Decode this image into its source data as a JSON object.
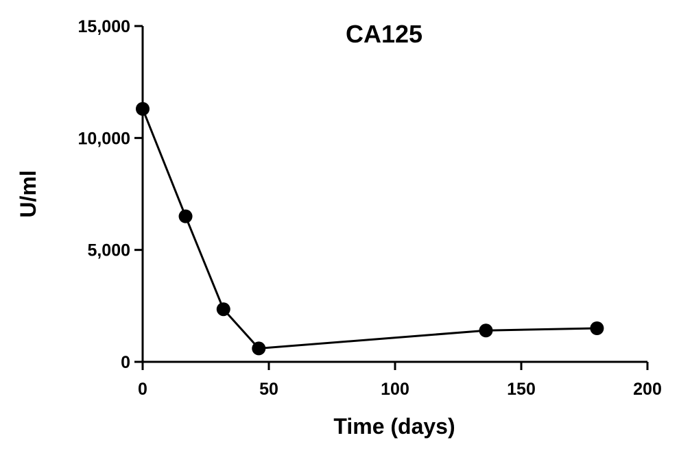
{
  "chart_data": {
    "type": "line",
    "title": "CA125",
    "xlabel": "Time (days)",
    "ylabel": "U/ml",
    "xlim": [
      0,
      200
    ],
    "ylim": [
      0,
      15000
    ],
    "xticks": [
      "0",
      "50",
      "100",
      "150",
      "200"
    ],
    "yticks": [
      "0",
      "5,000",
      "10,000",
      "15,000"
    ],
    "grid": false,
    "legend": "none",
    "series": [
      {
        "x": [
          0,
          17,
          32,
          46,
          136,
          180
        ],
        "y": [
          11300,
          6500,
          2350,
          600,
          1400,
          1500
        ]
      }
    ],
    "colors": {
      "line": "#000000",
      "marker": "#000000"
    }
  }
}
